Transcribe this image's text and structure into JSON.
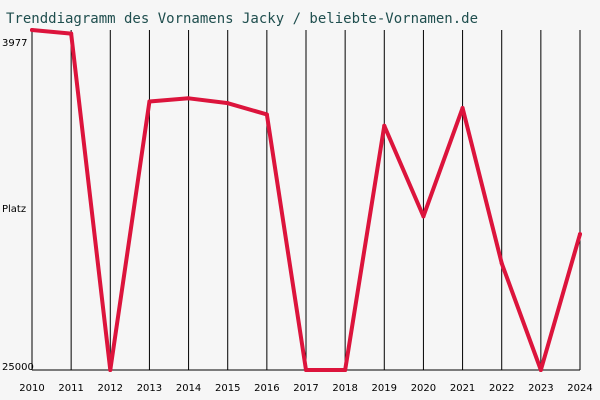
{
  "chart_data": {
    "type": "line",
    "title": "Trenddiagramm des Vornamens Jacky / beliebte-Vornamen.de",
    "ylabel": "Platz",
    "y_tick_labels": [
      "3977",
      "25000"
    ],
    "ylim": [
      3977,
      25000
    ],
    "y_inverted": true,
    "x": [
      "2010",
      "2011",
      "2012",
      "2013",
      "2014",
      "2015",
      "2016",
      "2017",
      "2018",
      "2019",
      "2020",
      "2021",
      "2022",
      "2023",
      "2024"
    ],
    "series": [
      {
        "values": [
          3977,
          4200,
          25000,
          8400,
          8200,
          8500,
          9200,
          25000,
          25000,
          9900,
          15500,
          8800,
          18400,
          25000,
          16600
        ],
        "color": "#dc143c"
      }
    ],
    "grid": "vertical",
    "line_color": "#dc143c"
  }
}
